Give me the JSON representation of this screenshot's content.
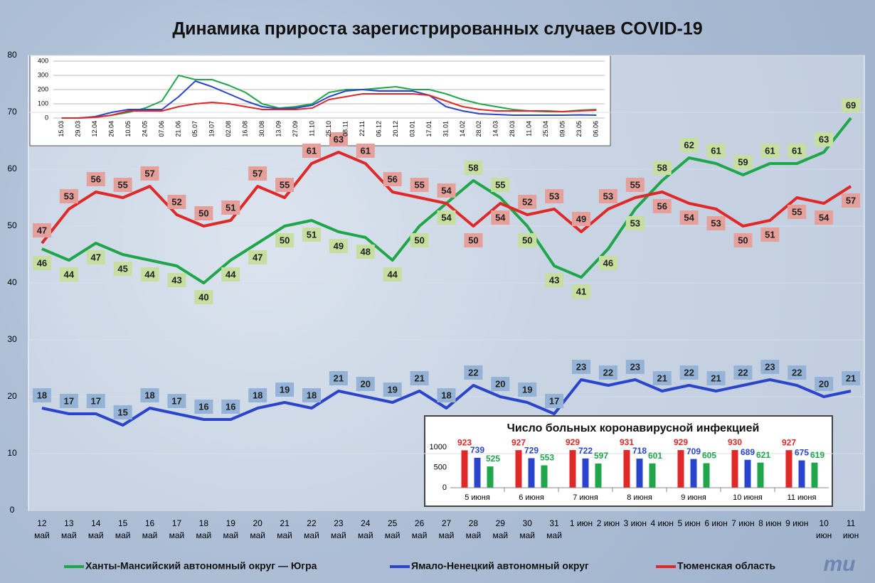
{
  "chart_data": [
    {
      "type": "line",
      "title": "Динамика прироста зарегистрированных случаев COVID-19",
      "categories": [
        "12 май",
        "13 май",
        "14 май",
        "15 май",
        "16 май",
        "17 май",
        "18 май",
        "19 май",
        "20 май",
        "21 май",
        "22 май",
        "23 май",
        "24 май",
        "25 май",
        "26 май",
        "27 май",
        "28 май",
        "29 май",
        "30 май",
        "31 май",
        "1 июн",
        "2 июн",
        "3 июн",
        "4 июн",
        "5 июн",
        "6 июн",
        "7 июн",
        "8 июн",
        "9 июн",
        "10 июн",
        "11 июн"
      ],
      "series": [
        {
          "name": "Ханты-Мансийский автономный округ — Югра",
          "color": "#1fa64a",
          "values": [
            46,
            44,
            47,
            45,
            44,
            43,
            40,
            44,
            47,
            50,
            51,
            49,
            48,
            44,
            50,
            54,
            58,
            55,
            50,
            43,
            41,
            46,
            53,
            58,
            62,
            61,
            59,
            61,
            61,
            63,
            69
          ]
        },
        {
          "name": "Ямало-Ненецкий автономный округ",
          "color": "#2a45cc",
          "values": [
            18,
            17,
            17,
            15,
            18,
            17,
            16,
            16,
            18,
            19,
            18,
            21,
            20,
            19,
            21,
            18,
            22,
            20,
            19,
            17,
            23,
            22,
            23,
            21,
            22,
            21,
            22,
            23,
            22,
            20,
            21
          ]
        },
        {
          "name": "Тюменская область",
          "color": "#e02828",
          "values": [
            47,
            53,
            56,
            55,
            57,
            52,
            50,
            51,
            57,
            55,
            61,
            63,
            61,
            56,
            55,
            54,
            50,
            54,
            52,
            53,
            49,
            53,
            55,
            56,
            54,
            53,
            50,
            51,
            55,
            54,
            57
          ]
        }
      ],
      "ylim": [
        0,
        80
      ],
      "yticks": [
        0,
        10,
        20,
        30,
        40,
        50,
        60,
        70,
        80
      ],
      "grid": true,
      "legend": "bottom"
    },
    {
      "type": "line",
      "categories": [
        "15.03",
        "29.03",
        "12.04",
        "26.04",
        "10.05",
        "24.05",
        "07.06",
        "21.06",
        "05.07",
        "19.07",
        "02.08",
        "16.08",
        "30.08",
        "13.09",
        "27.09",
        "11.10",
        "25.10",
        "08.11",
        "22.11",
        "06.12",
        "20.12",
        "03.01",
        "17.01",
        "31.01",
        "14.02",
        "28.02",
        "14.03",
        "28.03",
        "11.04",
        "25.04",
        "09.05",
        "23.05",
        "06.06"
      ],
      "series": [
        {
          "color": "#1fa64a",
          "values": [
            0,
            0,
            5,
            20,
            40,
            70,
            120,
            300,
            270,
            270,
            230,
            180,
            100,
            70,
            80,
            100,
            180,
            200,
            200,
            210,
            220,
            200,
            200,
            170,
            130,
            100,
            80,
            60,
            50,
            45,
            45,
            55,
            60
          ]
        },
        {
          "color": "#2a45cc",
          "values": [
            0,
            0,
            10,
            40,
            60,
            60,
            60,
            150,
            260,
            220,
            170,
            120,
            80,
            65,
            70,
            90,
            150,
            190,
            200,
            190,
            190,
            190,
            160,
            80,
            50,
            30,
            25,
            20,
            20,
            20,
            20,
            22,
            20
          ]
        },
        {
          "color": "#e02828",
          "values": [
            0,
            0,
            5,
            20,
            50,
            50,
            50,
            80,
            100,
            110,
            100,
            80,
            60,
            60,
            60,
            70,
            130,
            150,
            170,
            170,
            170,
            170,
            160,
            120,
            80,
            60,
            50,
            50,
            50,
            50,
            45,
            50,
            55
          ]
        }
      ],
      "ylim": [
        0,
        400
      ],
      "yticks": [
        0,
        100,
        200,
        300,
        400
      ],
      "grid": true
    },
    {
      "type": "bar",
      "title": "Число больных коронавирусной  инфекцией",
      "categories": [
        "5 июня",
        "6 июня",
        "7 июня",
        "8 июня",
        "9 июня",
        "10 июня",
        "11 июня"
      ],
      "series": [
        {
          "color": "#e02828",
          "values": [
            923,
            927,
            929,
            931,
            929,
            930,
            927
          ]
        },
        {
          "color": "#2a45cc",
          "values": [
            739,
            729,
            722,
            718,
            709,
            689,
            675
          ]
        },
        {
          "color": "#1fa64a",
          "values": [
            525,
            553,
            597,
            601,
            605,
            621,
            619
          ]
        }
      ],
      "ylim": [
        0,
        1000
      ],
      "yticks": [
        0,
        500,
        1000
      ]
    }
  ],
  "logo": "mu"
}
